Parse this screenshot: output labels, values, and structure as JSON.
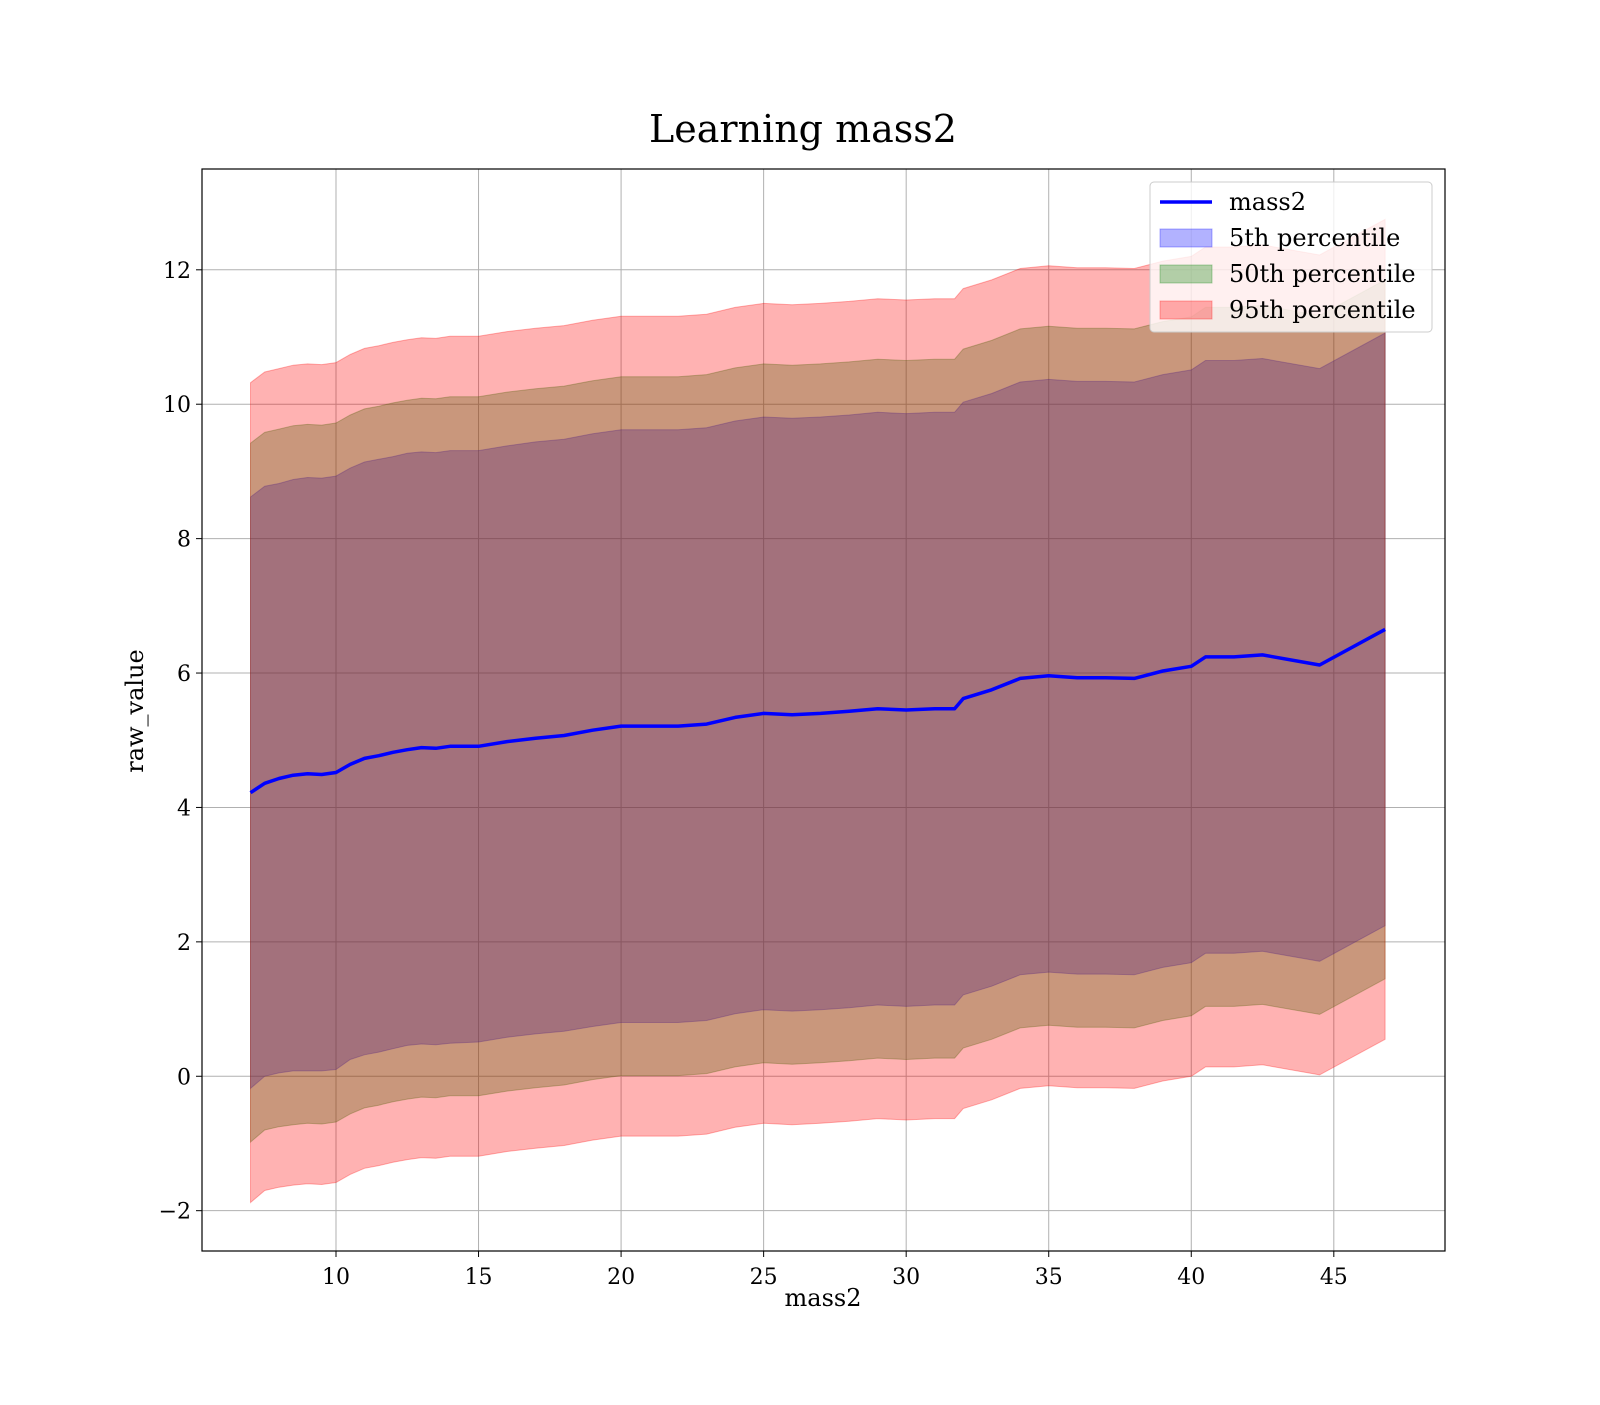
{
  "chart_data": {
    "type": "area",
    "title": "Learning mass2",
    "xlabel": "mass2",
    "ylabel": "raw_value",
    "xlim": [
      5.3,
      48.9
    ],
    "ylim": [
      -2.6,
      13.5
    ],
    "x_ticks": [
      10,
      15,
      20,
      25,
      30,
      35,
      40,
      45
    ],
    "y_ticks": [
      -2,
      0,
      2,
      4,
      6,
      8,
      10,
      12
    ],
    "x_tick_labels": [
      "10",
      "15",
      "20",
      "25",
      "30",
      "35",
      "40",
      "45"
    ],
    "y_tick_labels": [
      "−2",
      "0",
      "2",
      "4",
      "6",
      "8",
      "10",
      "12"
    ],
    "grid": true,
    "legend_position": "top-right",
    "legend": [
      {
        "label": "mass2",
        "kind": "line",
        "color": "#0000ff"
      },
      {
        "label": "5th percentile",
        "kind": "patch",
        "color": "#0000ff"
      },
      {
        "label": "50th percentile",
        "kind": "patch",
        "color": "#008000"
      },
      {
        "label": "95th percentile",
        "kind": "patch",
        "color": "#ff0000"
      }
    ],
    "x": [
      7.0,
      7.5,
      8.0,
      8.5,
      9.0,
      9.5,
      10.0,
      10.5,
      11.0,
      11.5,
      12.0,
      12.5,
      13.0,
      13.5,
      14.0,
      15.0,
      16.0,
      17.0,
      18.0,
      19.0,
      20.0,
      21.0,
      22.0,
      23.0,
      24.0,
      25.0,
      26.0,
      27.0,
      28.0,
      29.0,
      30.0,
      31.0,
      31.7,
      32.0,
      33.0,
      34.0,
      35.0,
      36.0,
      37.0,
      38.0,
      39.0,
      40.0,
      40.5,
      41.5,
      42.5,
      44.5,
      46.8
    ],
    "series": [
      {
        "name": "mass2",
        "color": "#0000ff",
        "values": [
          4.22,
          4.36,
          4.43,
          4.48,
          4.5,
          4.49,
          4.52,
          4.64,
          4.73,
          4.77,
          4.82,
          4.86,
          4.89,
          4.88,
          4.91,
          4.91,
          4.98,
          5.03,
          5.07,
          5.15,
          5.21,
          5.21,
          5.21,
          5.24,
          5.34,
          5.4,
          5.38,
          5.4,
          5.43,
          5.47,
          5.45,
          5.47,
          5.47,
          5.62,
          5.75,
          5.92,
          5.96,
          5.93,
          5.93,
          5.92,
          6.03,
          6.1,
          6.24,
          6.24,
          6.27,
          6.12,
          6.65
        ]
      }
    ],
    "bands": [
      {
        "name": "5th percentile",
        "color": "#0000ff",
        "lower": [
          -0.18,
          0.0,
          0.05,
          0.08,
          0.08,
          0.08,
          0.1,
          0.25,
          0.32,
          0.36,
          0.41,
          0.46,
          0.48,
          0.47,
          0.49,
          0.51,
          0.58,
          0.63,
          0.67,
          0.74,
          0.8,
          0.8,
          0.8,
          0.83,
          0.93,
          0.99,
          0.97,
          0.99,
          1.02,
          1.06,
          1.04,
          1.06,
          1.06,
          1.21,
          1.34,
          1.51,
          1.55,
          1.52,
          1.52,
          1.51,
          1.62,
          1.69,
          1.83,
          1.83,
          1.86,
          1.71,
          2.24
        ],
        "upper": [
          8.62,
          8.78,
          8.82,
          8.88,
          8.91,
          8.9,
          8.93,
          9.05,
          9.14,
          9.18,
          9.22,
          9.27,
          9.29,
          9.28,
          9.31,
          9.31,
          9.38,
          9.44,
          9.48,
          9.56,
          9.62,
          9.62,
          9.62,
          9.65,
          9.75,
          9.81,
          9.79,
          9.81,
          9.84,
          9.88,
          9.86,
          9.88,
          9.88,
          10.03,
          10.16,
          10.33,
          10.37,
          10.34,
          10.34,
          10.33,
          10.44,
          10.51,
          10.65,
          10.65,
          10.68,
          10.53,
          11.06
        ]
      },
      {
        "name": "50th percentile",
        "color": "#008000",
        "lower": [
          -0.98,
          -0.8,
          -0.75,
          -0.72,
          -0.7,
          -0.71,
          -0.68,
          -0.56,
          -0.47,
          -0.43,
          -0.38,
          -0.34,
          -0.31,
          -0.32,
          -0.29,
          -0.29,
          -0.22,
          -0.17,
          -0.13,
          -0.05,
          0.01,
          0.01,
          0.01,
          0.04,
          0.14,
          0.2,
          0.18,
          0.2,
          0.23,
          0.27,
          0.25,
          0.27,
          0.27,
          0.42,
          0.55,
          0.72,
          0.76,
          0.73,
          0.73,
          0.72,
          0.83,
          0.9,
          1.04,
          1.04,
          1.07,
          0.92,
          1.45
        ],
        "upper": [
          9.42,
          9.58,
          9.63,
          9.68,
          9.7,
          9.69,
          9.72,
          9.84,
          9.93,
          9.97,
          10.02,
          10.06,
          10.09,
          10.08,
          10.11,
          10.11,
          10.18,
          10.23,
          10.27,
          10.35,
          10.41,
          10.41,
          10.41,
          10.44,
          10.54,
          10.6,
          10.58,
          10.6,
          10.63,
          10.67,
          10.65,
          10.67,
          10.67,
          10.82,
          10.95,
          11.12,
          11.16,
          11.13,
          11.13,
          11.12,
          11.23,
          11.3,
          11.44,
          11.44,
          11.47,
          11.32,
          11.85
        ]
      },
      {
        "name": "95th percentile",
        "color": "#ff0000",
        "lower": [
          -1.88,
          -1.7,
          -1.65,
          -1.62,
          -1.6,
          -1.61,
          -1.58,
          -1.46,
          -1.37,
          -1.33,
          -1.28,
          -1.24,
          -1.21,
          -1.22,
          -1.19,
          -1.19,
          -1.12,
          -1.07,
          -1.03,
          -0.95,
          -0.89,
          -0.89,
          -0.89,
          -0.86,
          -0.76,
          -0.7,
          -0.72,
          -0.7,
          -0.67,
          -0.63,
          -0.65,
          -0.63,
          -0.63,
          -0.48,
          -0.35,
          -0.18,
          -0.14,
          -0.17,
          -0.17,
          -0.18,
          -0.07,
          0.0,
          0.14,
          0.14,
          0.17,
          0.02,
          0.55
        ],
        "upper": [
          10.32,
          10.48,
          10.53,
          10.58,
          10.6,
          10.59,
          10.62,
          10.74,
          10.83,
          10.87,
          10.92,
          10.96,
          10.99,
          10.98,
          11.01,
          11.01,
          11.08,
          11.13,
          11.17,
          11.25,
          11.31,
          11.31,
          11.31,
          11.34,
          11.44,
          11.5,
          11.48,
          11.5,
          11.53,
          11.57,
          11.55,
          11.57,
          11.57,
          11.72,
          11.85,
          12.02,
          12.06,
          12.03,
          12.03,
          12.02,
          12.13,
          12.2,
          12.34,
          12.34,
          12.37,
          12.22,
          12.75
        ]
      }
    ]
  }
}
